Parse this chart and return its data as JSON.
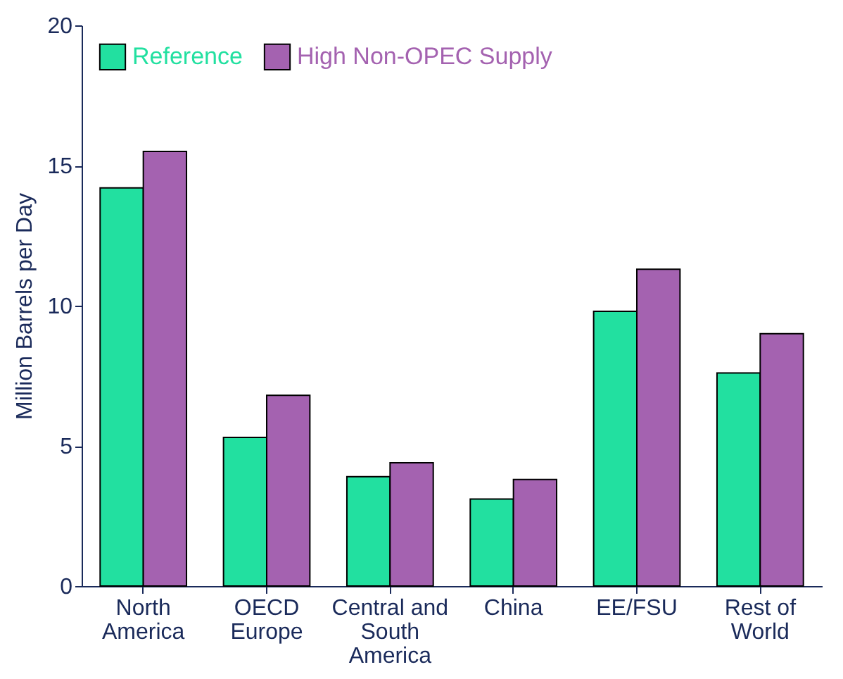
{
  "chart_data": {
    "type": "bar",
    "ylabel": "Million Barrels per Day",
    "categories": [
      "North America",
      "OECD Europe",
      "Central and South America",
      "China",
      "EE/FSU",
      "Rest of World"
    ],
    "series": [
      {
        "name": "Reference",
        "color": "#22e0a0",
        "values": [
          14.2,
          5.3,
          3.9,
          3.1,
          9.8,
          7.6
        ]
      },
      {
        "name": "High Non-OPEC Supply",
        "color": "#a462b0",
        "values": [
          15.5,
          6.8,
          4.4,
          3.8,
          11.3,
          9.0
        ]
      }
    ],
    "ylim": [
      0,
      20
    ],
    "yticks": [
      0,
      5,
      10,
      15,
      20
    ],
    "grid": false,
    "legend": "top left"
  }
}
